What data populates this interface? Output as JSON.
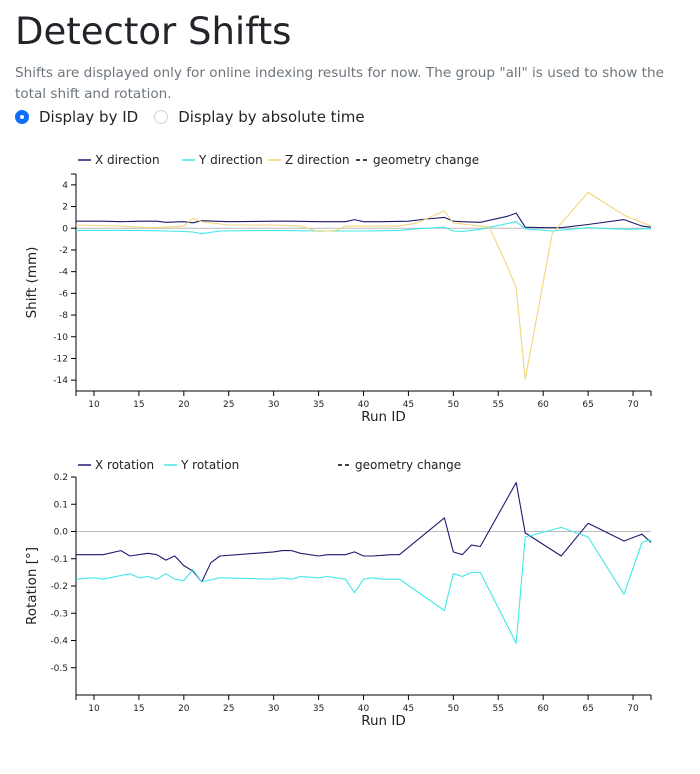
{
  "page": {
    "title": "Detector Shifts",
    "description": "Shifts are displayed only for online indexing results for now. The group \"all\" is used to show the total shift and rotation."
  },
  "radios": [
    {
      "label": "Display by ID",
      "checked": true
    },
    {
      "label": "Display by absolute time",
      "checked": false
    }
  ],
  "colors": {
    "x": "#1f1a6e",
    "y": "#3fe8e8",
    "z": "#f0d67a",
    "axis": "#000000",
    "zero": "#bbbbbb"
  },
  "chart_data": [
    {
      "type": "line",
      "title": "",
      "xlabel": "Run ID",
      "ylabel": "Shift (mm)",
      "xlim": [
        8,
        72
      ],
      "ylim": [
        -15,
        5
      ],
      "xticks": [
        "10",
        "15",
        "20",
        "25",
        "30",
        "35",
        "40",
        "45",
        "50",
        "55",
        "60",
        "65",
        "70"
      ],
      "yticks": [
        "4",
        "2",
        "0",
        "-2",
        "-4",
        "-6",
        "-8",
        "-10",
        "-12",
        "-14"
      ],
      "legend_placement": "top-left",
      "legend": [
        {
          "label": "X direction",
          "style": "solid",
          "color": "#1f1a6e"
        },
        {
          "label": "Y direction",
          "style": "solid",
          "color": "#3fe8e8"
        },
        {
          "label": "Z direction",
          "style": "solid",
          "color": "#f0d67a"
        },
        {
          "label": "geometry change",
          "style": "dashed",
          "color": "#000000"
        }
      ],
      "series": [
        {
          "name": "X direction",
          "color": "#1f1a6e",
          "x": [
            8,
            11,
            13,
            15,
            17,
            18,
            20,
            21,
            22,
            25,
            30,
            32,
            35,
            38,
            39,
            40,
            42,
            45,
            47,
            49,
            50,
            51,
            53,
            56,
            57,
            58,
            60,
            62,
            65,
            69,
            71,
            72
          ],
          "y": [
            0.65,
            0.65,
            0.6,
            0.65,
            0.65,
            0.55,
            0.6,
            0.5,
            0.7,
            0.6,
            0.65,
            0.65,
            0.6,
            0.6,
            0.8,
            0.6,
            0.6,
            0.65,
            0.85,
            1.0,
            0.65,
            0.6,
            0.55,
            1.1,
            1.4,
            0.1,
            0.05,
            0.05,
            0.35,
            0.8,
            0.2,
            0.1
          ]
        },
        {
          "name": "Y direction",
          "color": "#3fe8e8",
          "x": [
            8,
            12,
            15,
            18,
            20,
            21,
            22,
            24,
            30,
            35,
            40,
            44,
            46,
            49,
            50,
            51,
            53,
            57,
            58,
            61,
            65,
            69,
            72
          ],
          "y": [
            -0.2,
            -0.2,
            -0.2,
            -0.25,
            -0.3,
            -0.35,
            -0.5,
            -0.25,
            -0.2,
            -0.25,
            -0.25,
            -0.2,
            -0.05,
            0.1,
            -0.25,
            -0.3,
            -0.1,
            0.6,
            -0.05,
            -0.25,
            0.05,
            -0.1,
            -0.05
          ]
        },
        {
          "name": "Z direction",
          "color": "#f0d67a",
          "x": [
            8,
            13,
            16,
            18,
            20,
            21,
            22,
            25,
            30,
            33,
            35,
            37,
            38,
            40,
            44,
            46,
            49,
            50,
            51,
            52,
            53,
            54,
            56,
            57,
            58,
            61,
            65,
            69,
            72
          ],
          "y": [
            0.3,
            0.2,
            0.05,
            0.1,
            0.2,
            0.9,
            0.6,
            0.3,
            0.3,
            0.2,
            -0.3,
            -0.2,
            0.2,
            0.2,
            0.2,
            0.5,
            1.6,
            0.5,
            0.4,
            0.3,
            0.2,
            0.1,
            -3.5,
            -5.5,
            -13.9,
            -0.5,
            3.3,
            1.2,
            0.2
          ]
        }
      ]
    },
    {
      "type": "line",
      "title": "",
      "xlabel": "Run ID",
      "ylabel": "Rotation [°]",
      "xlim": [
        8,
        72
      ],
      "ylim": [
        -0.6,
        0.2
      ],
      "xticks": [
        "10",
        "15",
        "20",
        "25",
        "30",
        "35",
        "40",
        "45",
        "50",
        "55",
        "60",
        "65",
        "70"
      ],
      "yticks": [
        "0.2",
        "0.1",
        "0.0",
        "-0.1",
        "-0.2",
        "-0.3",
        "-0.4",
        "-0.5"
      ],
      "legend_placement": "top-left",
      "legend": [
        {
          "label": "X rotation",
          "style": "solid",
          "color": "#1f1a6e"
        },
        {
          "label": "Y rotation",
          "style": "solid",
          "color": "#3fe8e8"
        },
        {
          "label": "geometry change",
          "style": "dashed",
          "color": "#000000"
        }
      ],
      "series": [
        {
          "name": "X rotation",
          "color": "#1f1a6e",
          "x": [
            8,
            11,
            13,
            14,
            16,
            17,
            18,
            19,
            20,
            21,
            22,
            23,
            24,
            30,
            31,
            32,
            33,
            35,
            36,
            38,
            39,
            40,
            41,
            43,
            44,
            49,
            50,
            51,
            52,
            53,
            57,
            58,
            62,
            65,
            69,
            71,
            72
          ],
          "y": [
            -0.085,
            -0.085,
            -0.07,
            -0.09,
            -0.08,
            -0.085,
            -0.105,
            -0.09,
            -0.125,
            -0.145,
            -0.185,
            -0.115,
            -0.09,
            -0.075,
            -0.07,
            -0.07,
            -0.08,
            -0.09,
            -0.085,
            -0.085,
            -0.075,
            -0.09,
            -0.09,
            -0.085,
            -0.085,
            0.05,
            -0.075,
            -0.085,
            -0.05,
            -0.055,
            0.18,
            -0.005,
            -0.09,
            0.03,
            -0.035,
            -0.01,
            -0.04
          ]
        },
        {
          "name": "Y rotation",
          "color": "#3fe8e8",
          "x": [
            8,
            10,
            11,
            14,
            15,
            16,
            17,
            18,
            19,
            20,
            21,
            22,
            24,
            30,
            31,
            32,
            33,
            35,
            36,
            37,
            38,
            39,
            40,
            41,
            42,
            44,
            49,
            50,
            51,
            52,
            53,
            57,
            58,
            62,
            65,
            69,
            71,
            72
          ],
          "y": [
            -0.175,
            -0.17,
            -0.175,
            -0.155,
            -0.17,
            -0.165,
            -0.175,
            -0.155,
            -0.175,
            -0.18,
            -0.14,
            -0.185,
            -0.17,
            -0.175,
            -0.17,
            -0.175,
            -0.165,
            -0.17,
            -0.165,
            -0.17,
            -0.175,
            -0.225,
            -0.175,
            -0.17,
            -0.175,
            -0.175,
            -0.29,
            -0.155,
            -0.165,
            -0.15,
            -0.15,
            -0.41,
            -0.02,
            0.015,
            -0.02,
            -0.23,
            -0.04,
            -0.03
          ]
        }
      ]
    }
  ]
}
